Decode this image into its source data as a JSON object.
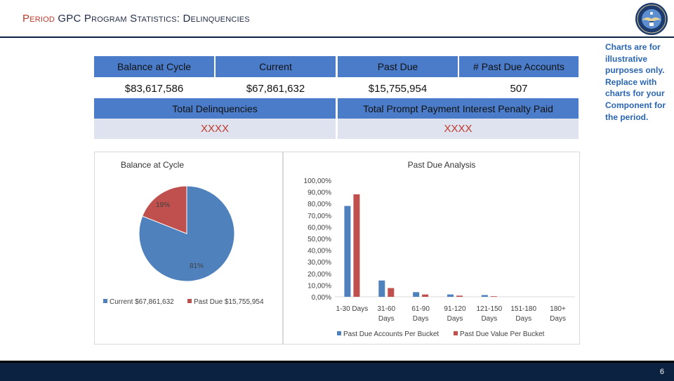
{
  "header": {
    "title_hl": "Period",
    "title_rest": "GPC Program Statistics: Delinquencies",
    "seal_icon": "department-of-defense-seal"
  },
  "note": "Charts are for illustrative purposes only. Replace with charts for your Component for the period.",
  "table": {
    "headers": [
      "Balance at Cycle",
      "Current",
      "Past Due",
      "# Past Due Accounts"
    ],
    "values": [
      "$83,617,586",
      "$67,861,632",
      "$15,755,954",
      "507"
    ],
    "sub_headers": [
      "Total Delinquencies",
      "Total Prompt Payment Interest Penalty Paid"
    ],
    "sub_values": [
      "XXXX",
      "XXXX"
    ]
  },
  "colors": {
    "header_blue": "#4a7cc9",
    "series_blue": "#4f81bd",
    "series_red": "#c0504d",
    "placeholder_red": "#c0392b",
    "navy": "#0b2240"
  },
  "chart_data": [
    {
      "type": "pie",
      "title": "Balance at Cycle",
      "slices": [
        {
          "name": "Current $67,861,632",
          "value": 81,
          "label": "81%",
          "color": "#4f81bd"
        },
        {
          "name": "Past Due $15,755,954",
          "value": 19,
          "label": "19%",
          "color": "#c0504d"
        }
      ],
      "legend_position": "bottom"
    },
    {
      "type": "bar",
      "title": "Past Due Analysis",
      "categories": [
        [
          "1-30 Days"
        ],
        [
          "31-60",
          "Days"
        ],
        [
          "61-90",
          "Days"
        ],
        [
          "91-120",
          "Days"
        ],
        [
          "121-150",
          "Days"
        ],
        [
          "151-180",
          "Days"
        ],
        [
          "180+",
          "Days"
        ]
      ],
      "series": [
        {
          "name": "Past Due Accounts Per Bucket",
          "color": "#4f81bd",
          "values": [
            78,
            14,
            4,
            2,
            1.5,
            0,
            0
          ]
        },
        {
          "name": "Past Due Value Per Bucket",
          "color": "#c0504d",
          "values": [
            88,
            7.5,
            2,
            1,
            0.5,
            0,
            0
          ]
        }
      ],
      "ylim": [
        0,
        100
      ],
      "yticks": [
        "0,00%",
        "10,00%",
        "20,00%",
        "30,00%",
        "40,00%",
        "50,00%",
        "60,00%",
        "70,00%",
        "80,00%",
        "90,00%",
        "100,00%"
      ],
      "grid": false,
      "legend_position": "bottom"
    }
  ],
  "footer": {
    "page_number": "6"
  }
}
